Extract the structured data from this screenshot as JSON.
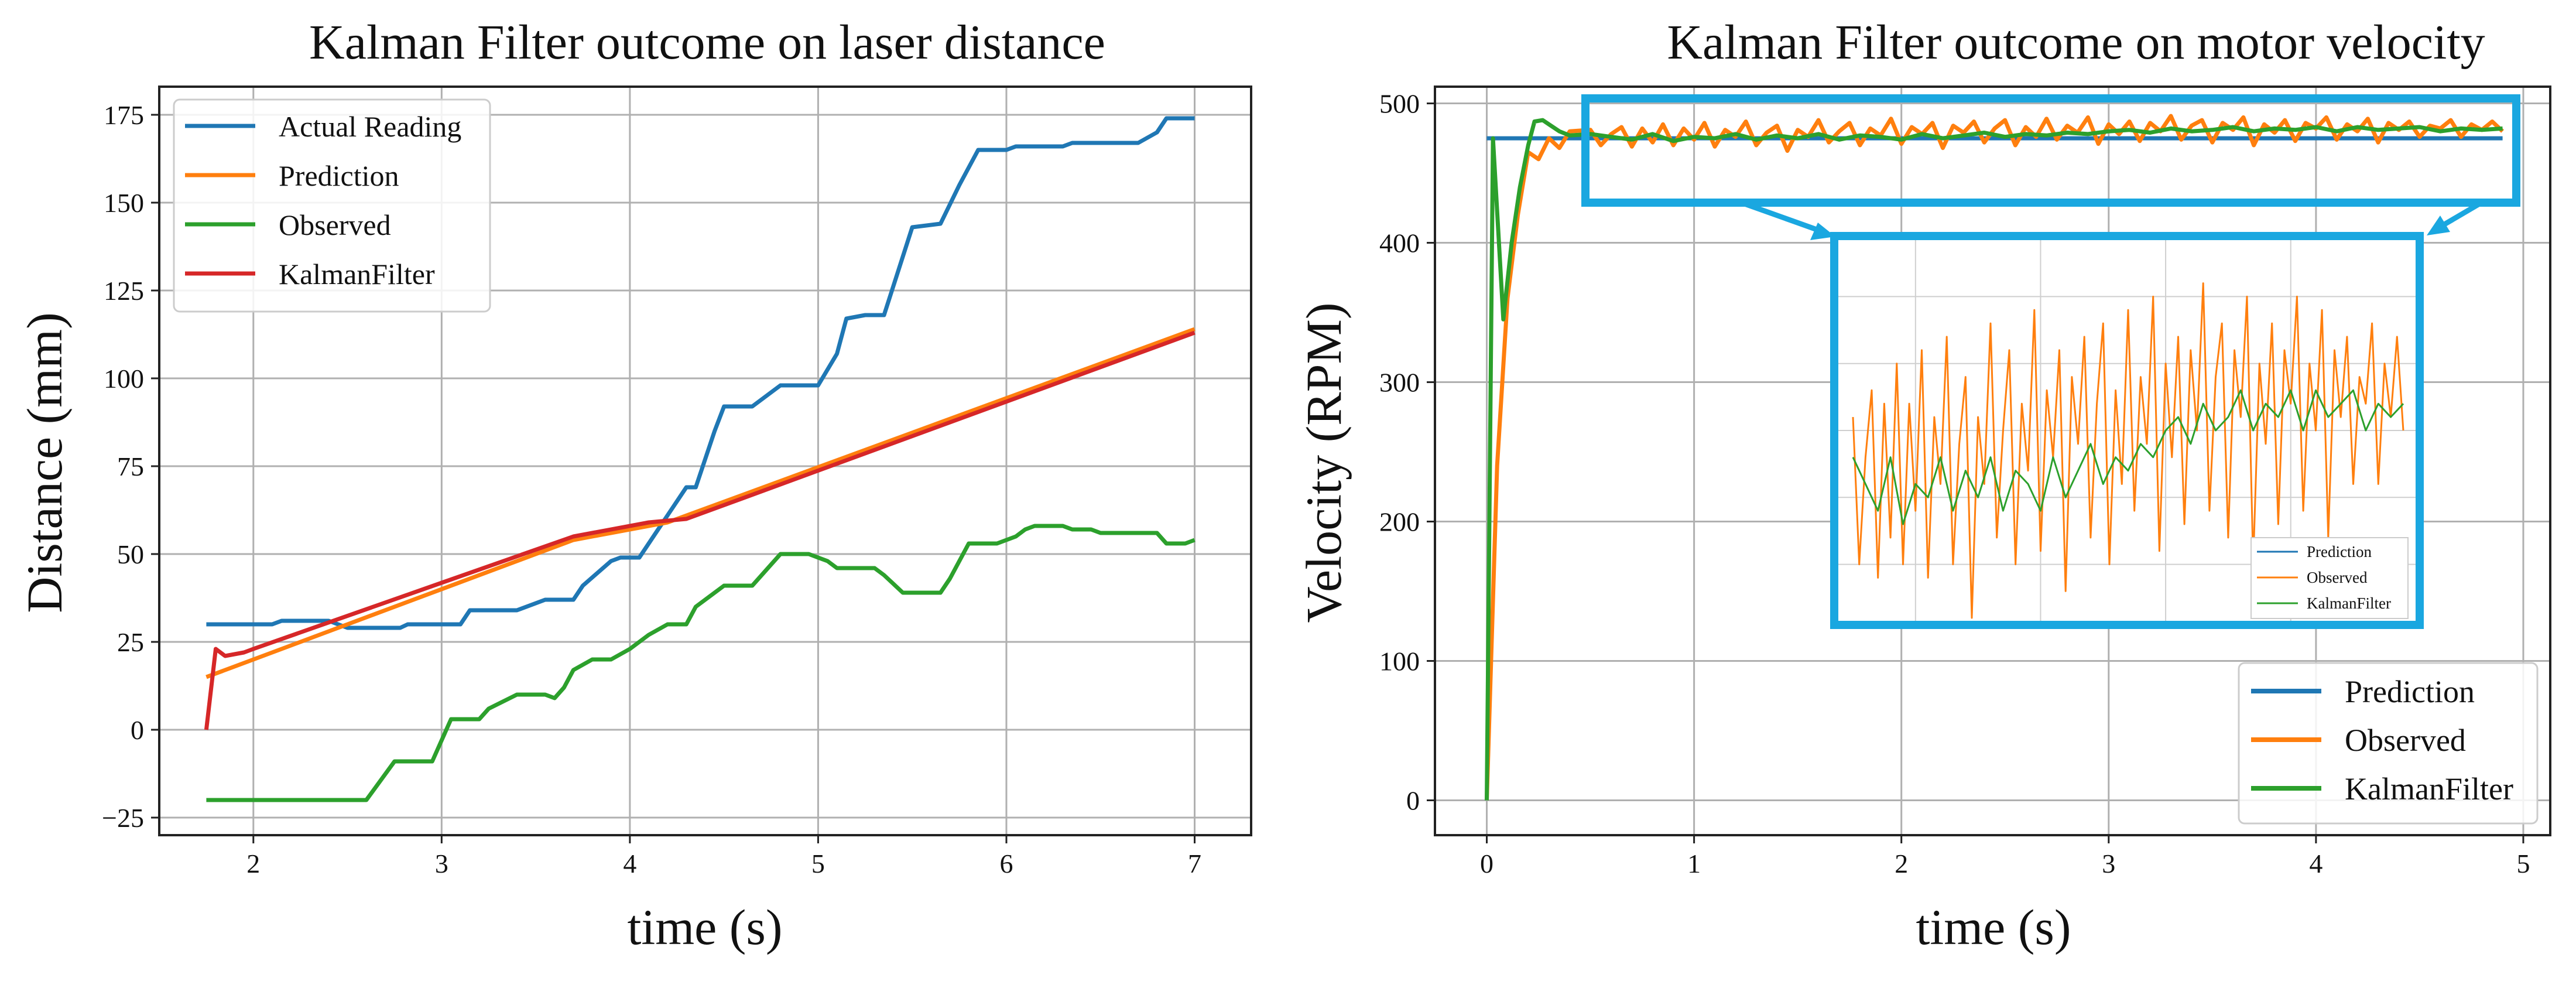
{
  "chart_data": [
    {
      "type": "line",
      "title": "Kalman Filter outcome on laser distance",
      "xlabel": "time (s)",
      "ylabel": "Distance (mm)",
      "xlim": [
        1.5,
        7.3
      ],
      "ylim": [
        -30,
        183
      ],
      "xticks": [
        2,
        3,
        4,
        5,
        6,
        7
      ],
      "yticks": [
        -25,
        0,
        25,
        50,
        75,
        100,
        125,
        150,
        175
      ],
      "grid": true,
      "legend": "top-left",
      "series": [
        {
          "name": "Actual Reading",
          "color": "#1f77b4",
          "points": [
            [
              1.75,
              30
            ],
            [
              2.1,
              30
            ],
            [
              2.15,
              31
            ],
            [
              2.4,
              31
            ],
            [
              2.5,
              29
            ],
            [
              2.78,
              29
            ],
            [
              2.82,
              30
            ],
            [
              3.1,
              30
            ],
            [
              3.15,
              34
            ],
            [
              3.4,
              34
            ],
            [
              3.55,
              37
            ],
            [
              3.7,
              37
            ],
            [
              3.75,
              41
            ],
            [
              3.9,
              48
            ],
            [
              3.95,
              49
            ],
            [
              4.05,
              49
            ],
            [
              4.15,
              57
            ],
            [
              4.3,
              69
            ],
            [
              4.35,
              69
            ],
            [
              4.45,
              85
            ],
            [
              4.5,
              92
            ],
            [
              4.65,
              92
            ],
            [
              4.75,
              96
            ],
            [
              4.8,
              98
            ],
            [
              5.0,
              98
            ],
            [
              5.1,
              107
            ],
            [
              5.15,
              117
            ],
            [
              5.25,
              118
            ],
            [
              5.35,
              118
            ],
            [
              5.5,
              143
            ],
            [
              5.65,
              144
            ],
            [
              5.75,
              155
            ],
            [
              5.85,
              165
            ],
            [
              6.0,
              165
            ],
            [
              6.05,
              166
            ],
            [
              6.3,
              166
            ],
            [
              6.35,
              167
            ],
            [
              6.7,
              167
            ],
            [
              6.8,
              170
            ],
            [
              6.85,
              174
            ],
            [
              7.0,
              174
            ]
          ]
        },
        {
          "name": "Prediction",
          "color": "#ff7f0e",
          "points": [
            [
              1.75,
              15
            ],
            [
              3.7,
              54
            ],
            [
              4.2,
              59
            ],
            [
              7.0,
              114
            ]
          ]
        },
        {
          "name": "Observed",
          "color": "#2ca02c",
          "points": [
            [
              1.75,
              -20
            ],
            [
              2.6,
              -20
            ],
            [
              2.75,
              -9
            ],
            [
              2.95,
              -9
            ],
            [
              3.05,
              3
            ],
            [
              3.2,
              3
            ],
            [
              3.25,
              6
            ],
            [
              3.4,
              10
            ],
            [
              3.55,
              10
            ],
            [
              3.6,
              9
            ],
            [
              3.65,
              12
            ],
            [
              3.7,
              17
            ],
            [
              3.8,
              20
            ],
            [
              3.9,
              20
            ],
            [
              4.0,
              23
            ],
            [
              4.1,
              27
            ],
            [
              4.2,
              30
            ],
            [
              4.3,
              30
            ],
            [
              4.35,
              35
            ],
            [
              4.5,
              41
            ],
            [
              4.65,
              41
            ],
            [
              4.75,
              47
            ],
            [
              4.8,
              50
            ],
            [
              4.95,
              50
            ],
            [
              5.05,
              48
            ],
            [
              5.1,
              46
            ],
            [
              5.3,
              46
            ],
            [
              5.35,
              44
            ],
            [
              5.45,
              39
            ],
            [
              5.65,
              39
            ],
            [
              5.7,
              43
            ],
            [
              5.8,
              53
            ],
            [
              5.95,
              53
            ],
            [
              6.05,
              55
            ],
            [
              6.1,
              57
            ],
            [
              6.15,
              58
            ],
            [
              6.3,
              58
            ],
            [
              6.35,
              57
            ],
            [
              6.45,
              57
            ],
            [
              6.5,
              56
            ],
            [
              6.8,
              56
            ],
            [
              6.85,
              53
            ],
            [
              6.95,
              53
            ],
            [
              7.0,
              54
            ]
          ]
        },
        {
          "name": "KalmanFilter",
          "color": "#d62728",
          "points": [
            [
              1.75,
              0
            ],
            [
              1.8,
              23
            ],
            [
              1.85,
              21
            ],
            [
              1.95,
              22
            ],
            [
              2.0,
              23
            ],
            [
              3.7,
              55
            ],
            [
              4.1,
              59
            ],
            [
              4.3,
              60
            ],
            [
              7.0,
              113
            ]
          ]
        }
      ]
    },
    {
      "type": "line",
      "title": "Kalman Filter outcome on motor velocity",
      "xlabel": "time (s)",
      "ylabel": "Velocity (RPM)",
      "xlim": [
        -0.25,
        5.13
      ],
      "ylim": [
        -25,
        512
      ],
      "xticks": [
        0,
        1,
        2,
        3,
        4,
        5
      ],
      "yticks": [
        0,
        100,
        200,
        300,
        400,
        500
      ],
      "grid": true,
      "legend": "bottom-right",
      "inset": {
        "zoom_x": [
          0.5,
          4.9
        ],
        "zoom_y": [
          466,
          494
        ],
        "legend": "bottom-right"
      },
      "series": [
        {
          "name": "Prediction",
          "color": "#1f77b4",
          "points": [
            [
              0.0,
              475
            ],
            [
              4.9,
              475
            ]
          ]
        },
        {
          "name": "Observed",
          "color": "#ff7f0e",
          "points": [
            [
              0.0,
              0
            ],
            [
              0.05,
              240
            ],
            [
              0.1,
              360
            ],
            [
              0.15,
              420
            ],
            [
              0.2,
              465
            ],
            [
              0.25,
              460
            ],
            [
              0.3,
              475
            ],
            [
              0.35,
              468
            ],
            [
              0.4,
              480
            ],
            [
              0.5,
              481
            ],
            [
              0.55,
              470
            ],
            [
              0.6,
              478
            ],
            [
              0.65,
              483
            ],
            [
              0.7,
              469
            ],
            [
              0.75,
              482
            ],
            [
              0.8,
              472
            ],
            [
              0.85,
              485
            ],
            [
              0.9,
              470
            ],
            [
              0.95,
              482
            ],
            [
              1.0,
              474
            ],
            [
              1.05,
              486
            ],
            [
              1.1,
              469
            ],
            [
              1.15,
              481
            ],
            [
              1.2,
              476
            ],
            [
              1.25,
              487
            ],
            [
              1.3,
              470
            ],
            [
              1.35,
              479
            ],
            [
              1.4,
              484
            ],
            [
              1.45,
              466
            ],
            [
              1.5,
              481
            ],
            [
              1.55,
              476
            ],
            [
              1.6,
              488
            ],
            [
              1.65,
              472
            ],
            [
              1.7,
              480
            ],
            [
              1.75,
              486
            ],
            [
              1.8,
              470
            ],
            [
              1.85,
              482
            ],
            [
              1.9,
              477
            ],
            [
              1.95,
              489
            ],
            [
              2.0,
              471
            ],
            [
              2.05,
              483
            ],
            [
              2.1,
              478
            ],
            [
              2.15,
              486
            ],
            [
              2.2,
              468
            ],
            [
              2.25,
              484
            ],
            [
              2.3,
              479
            ],
            [
              2.35,
              487
            ],
            [
              2.4,
              472
            ],
            [
              2.45,
              482
            ],
            [
              2.5,
              488
            ],
            [
              2.55,
              470
            ],
            [
              2.6,
              483
            ],
            [
              2.65,
              476
            ],
            [
              2.7,
              489
            ],
            [
              2.75,
              474
            ],
            [
              2.8,
              484
            ],
            [
              2.85,
              479
            ],
            [
              2.9,
              490
            ],
            [
              2.95,
              471
            ],
            [
              3.0,
              485
            ],
            [
              3.05,
              478
            ],
            [
              3.1,
              487
            ],
            [
              3.15,
              473
            ],
            [
              3.2,
              486
            ],
            [
              3.25,
              480
            ],
            [
              3.3,
              491
            ],
            [
              3.35,
              474
            ],
            [
              3.4,
              484
            ],
            [
              3.45,
              488
            ],
            [
              3.5,
              472
            ],
            [
              3.55,
              486
            ],
            [
              3.6,
              481
            ],
            [
              3.65,
              490
            ],
            [
              3.7,
              470
            ],
            [
              3.75,
              485
            ],
            [
              3.8,
              479
            ],
            [
              3.85,
              488
            ],
            [
              3.9,
              473
            ],
            [
              3.95,
              486
            ],
            [
              4.0,
              482
            ],
            [
              4.05,
              490
            ],
            [
              4.1,
              474
            ],
            [
              4.15,
              485
            ],
            [
              4.2,
              480
            ],
            [
              4.25,
              489
            ],
            [
              4.3,
              472
            ],
            [
              4.35,
              486
            ],
            [
              4.4,
              481
            ],
            [
              4.45,
              487
            ],
            [
              4.5,
              476
            ],
            [
              4.55,
              484
            ],
            [
              4.6,
              482
            ],
            [
              4.65,
              488
            ],
            [
              4.7,
              476
            ],
            [
              4.75,
              485
            ],
            [
              4.8,
              481
            ],
            [
              4.85,
              487
            ],
            [
              4.9,
              480
            ]
          ]
        },
        {
          "name": "KalmanFilter",
          "color": "#2ca02c",
          "points": [
            [
              0.0,
              0
            ],
            [
              0.03,
              475
            ],
            [
              0.08,
              345
            ],
            [
              0.12,
              400
            ],
            [
              0.16,
              440
            ],
            [
              0.2,
              470
            ],
            [
              0.23,
              487
            ],
            [
              0.27,
              488
            ],
            [
              0.3,
              485
            ],
            [
              0.35,
              480
            ],
            [
              0.4,
              477
            ],
            [
              0.5,
              478
            ],
            [
              0.6,
              476
            ],
            [
              0.7,
              474
            ],
            [
              0.8,
              478
            ],
            [
              0.9,
              473
            ],
            [
              1.0,
              476
            ],
            [
              1.1,
              475
            ],
            [
              1.2,
              478
            ],
            [
              1.3,
              474
            ],
            [
              1.4,
              477
            ],
            [
              1.5,
              475
            ],
            [
              1.6,
              478
            ],
            [
              1.7,
              474
            ],
            [
              1.8,
              477
            ],
            [
              1.9,
              476
            ],
            [
              2.0,
              474
            ],
            [
              2.1,
              478
            ],
            [
              2.2,
              475
            ],
            [
              2.3,
              477
            ],
            [
              2.4,
              479
            ],
            [
              2.5,
              476
            ],
            [
              2.6,
              478
            ],
            [
              2.7,
              477
            ],
            [
              2.8,
              479
            ],
            [
              2.9,
              478
            ],
            [
              3.0,
              480
            ],
            [
              3.1,
              481
            ],
            [
              3.2,
              479
            ],
            [
              3.3,
              482
            ],
            [
              3.4,
              480
            ],
            [
              3.5,
              481
            ],
            [
              3.6,
              483
            ],
            [
              3.7,
              480
            ],
            [
              3.8,
              482
            ],
            [
              3.9,
              481
            ],
            [
              4.0,
              483
            ],
            [
              4.1,
              480
            ],
            [
              4.2,
              483
            ],
            [
              4.3,
              481
            ],
            [
              4.4,
              482
            ],
            [
              4.5,
              483
            ],
            [
              4.6,
              480
            ],
            [
              4.7,
              482
            ],
            [
              4.8,
              481
            ],
            [
              4.9,
              482
            ]
          ]
        }
      ]
    }
  ]
}
